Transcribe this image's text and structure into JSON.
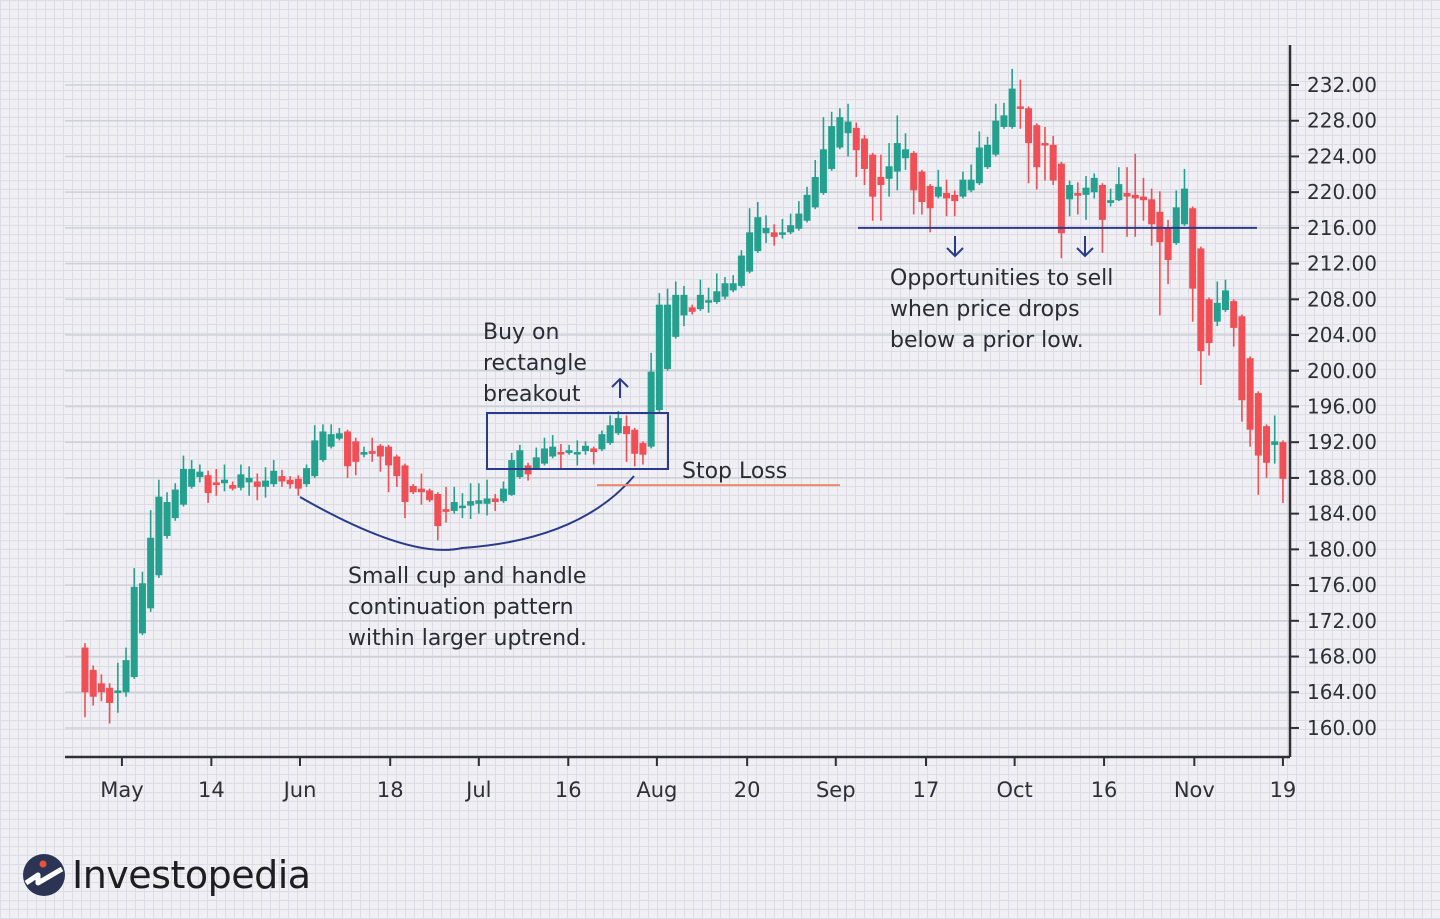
{
  "chart_data": {
    "type": "candlestick",
    "title": "",
    "xlabel": "",
    "ylabel": "",
    "ylim": [
      157,
      236
    ],
    "grid": true,
    "y_ticks": [
      "160.00",
      "164.00",
      "168.00",
      "172.00",
      "176.00",
      "180.00",
      "184.00",
      "188.00",
      "192.00",
      "196.00",
      "200.00",
      "204.00",
      "208.00",
      "212.00",
      "216.00",
      "220.00",
      "224.00",
      "228.00",
      "232.00"
    ],
    "x_ticks": [
      {
        "label": "May",
        "pos": 4.5
      },
      {
        "label": "14",
        "pos": 15.4
      },
      {
        "label": "Jun",
        "pos": 26.2
      },
      {
        "label": "18",
        "pos": 37.2
      },
      {
        "label": "Jul",
        "pos": 48
      },
      {
        "label": "16",
        "pos": 58.9
      },
      {
        "label": "Aug",
        "pos": 69.7
      },
      {
        "label": "20",
        "pos": 80.7
      },
      {
        "label": "Sep",
        "pos": 91.5
      },
      {
        "label": "17",
        "pos": 102.5
      },
      {
        "label": "Oct",
        "pos": 113.3
      },
      {
        "label": "16",
        "pos": 124.2
      },
      {
        "label": "Nov",
        "pos": 135.2
      },
      {
        "label": "19",
        "pos": 146
      }
    ],
    "colors": {
      "up": "#26a08e",
      "down": "#ef4f55",
      "axis": "#2f2f36",
      "annotation": "#2a3a8c",
      "stop_loss": "#ec8a70"
    },
    "ohlc": [
      [
        169,
        169.5,
        161.2,
        164
      ],
      [
        166.5,
        167,
        162.5,
        163.5
      ],
      [
        165,
        166,
        163,
        164
      ],
      [
        164.5,
        165,
        160.5,
        162.8
      ],
      [
        164,
        167.3,
        161.7,
        164.2
      ],
      [
        164,
        169,
        163.5,
        167.6
      ],
      [
        165.7,
        177.9,
        165.5,
        175.8
      ],
      [
        170.6,
        177.5,
        170.4,
        176.2
      ],
      [
        173.4,
        184.4,
        173,
        181.3
      ],
      [
        177.1,
        187.8,
        176.8,
        185.9
      ],
      [
        181.5,
        186.4,
        181.2,
        185.3
      ],
      [
        183.5,
        187.4,
        183.2,
        186.7
      ],
      [
        185,
        190.5,
        184.8,
        189
      ],
      [
        187,
        190,
        186.8,
        189
      ],
      [
        188.1,
        189.5,
        187.5,
        188.7
      ],
      [
        188.3,
        188.8,
        185.2,
        186.3
      ],
      [
        187.5,
        189,
        186,
        187.2
      ],
      [
        187.4,
        189.5,
        186.5,
        187.8
      ],
      [
        187.2,
        187.6,
        186.6,
        186.8
      ],
      [
        186.9,
        189.5,
        186.6,
        188.4
      ],
      [
        187.5,
        189.3,
        186,
        188
      ],
      [
        187.6,
        188.5,
        185.5,
        187
      ],
      [
        187,
        189.2,
        185.8,
        187.7
      ],
      [
        187.3,
        190,
        187,
        188.8
      ],
      [
        188.2,
        188.9,
        187,
        187.6
      ],
      [
        187.8,
        188.2,
        186.8,
        187.3
      ],
      [
        187.9,
        188.3,
        186,
        186.8
      ],
      [
        187.3,
        189.5,
        187,
        189.1
      ],
      [
        188.2,
        193.9,
        188,
        192.2
      ],
      [
        190,
        194,
        189.8,
        193.2
      ],
      [
        191.5,
        194,
        191.3,
        192.9
      ],
      [
        192.4,
        193.6,
        192.2,
        193
      ],
      [
        193.2,
        193.4,
        188,
        189.3
      ],
      [
        192.1,
        192.5,
        188.3,
        189.8
      ],
      [
        190.6,
        191.5,
        190.3,
        190.9
      ],
      [
        191,
        192.5,
        189.8,
        190.7
      ],
      [
        191.6,
        191.8,
        188.7,
        190.4
      ],
      [
        191.5,
        191.7,
        186.4,
        189.4
      ],
      [
        190.4,
        190.6,
        187,
        188.2
      ],
      [
        189.4,
        189.6,
        183.5,
        185.3
      ],
      [
        187.1,
        187.3,
        186.2,
        186.4
      ],
      [
        186.8,
        188.5,
        185,
        186.4
      ],
      [
        186.6,
        186.8,
        185.3,
        185.5
      ],
      [
        186.2,
        186.4,
        181,
        182.6
      ],
      [
        184.5,
        187,
        183,
        184.2
      ],
      [
        184.3,
        187,
        184,
        185.3
      ],
      [
        184.7,
        186.3,
        183.5,
        184.9
      ],
      [
        184.9,
        187.4,
        183.4,
        185.4
      ],
      [
        185.1,
        187.4,
        184,
        185.5
      ],
      [
        185.1,
        187.8,
        183.8,
        185.7
      ],
      [
        185.7,
        186.2,
        184.3,
        185.3
      ],
      [
        185.4,
        187.6,
        185.2,
        186.8
      ],
      [
        186.1,
        190.8,
        186,
        190
      ],
      [
        188.1,
        191.7,
        187.9,
        191.1
      ],
      [
        189.4,
        189.7,
        187.7,
        188.4
      ],
      [
        189.1,
        191.4,
        188.9,
        190.3
      ],
      [
        189.6,
        192.5,
        189.4,
        191.3
      ],
      [
        190.4,
        192.8,
        190.2,
        191.5
      ],
      [
        190.9,
        191.8,
        189.1,
        190.7
      ],
      [
        190.8,
        191.7,
        190.6,
        191.1
      ],
      [
        190.8,
        192.2,
        189.4,
        190.9
      ],
      [
        191,
        192.1,
        190.6,
        191.6
      ],
      [
        191.3,
        191.5,
        189.5,
        190.9
      ],
      [
        191.2,
        193.3,
        191,
        192.9
      ],
      [
        191.9,
        195,
        191.7,
        193.9
      ],
      [
        193,
        195.5,
        192.8,
        194.7
      ],
      [
        193.8,
        195,
        189.8,
        192.9
      ],
      [
        193.4,
        193.6,
        189.3,
        190.7
      ],
      [
        191.9,
        192.1,
        189.5,
        190.6
      ],
      [
        191.5,
        202,
        191.3,
        199.9
      ],
      [
        195.6,
        208.7,
        195.4,
        207.4
      ],
      [
        200.2,
        209.2,
        200,
        207.4
      ],
      [
        203.8,
        210,
        203.6,
        208.5
      ],
      [
        206.2,
        209.5,
        205,
        208.5
      ],
      [
        207.1,
        207.4,
        206.3,
        206.6
      ],
      [
        206.9,
        210.2,
        206.7,
        208.5
      ],
      [
        207.7,
        209.3,
        206.5,
        207.9
      ],
      [
        207.7,
        210.9,
        207.5,
        208.9
      ],
      [
        208.3,
        210.5,
        208,
        209.8
      ],
      [
        209,
        210.7,
        208.8,
        209.8
      ],
      [
        209.5,
        213.5,
        209.3,
        212.9
      ],
      [
        211.1,
        218.2,
        210.9,
        215.5
      ],
      [
        213.4,
        218.9,
        213.2,
        217.2
      ],
      [
        215.4,
        217.4,
        214.3,
        216
      ],
      [
        215.5,
        216.4,
        214,
        215
      ],
      [
        215.4,
        217,
        214.8,
        215.5
      ],
      [
        215.5,
        217.6,
        215.3,
        216.3
      ],
      [
        215.9,
        219,
        215.7,
        217.6
      ],
      [
        216.8,
        220.6,
        216.6,
        219.7
      ],
      [
        218.3,
        223.6,
        218.1,
        221.7
      ],
      [
        219.9,
        228.4,
        219.7,
        224.8
      ],
      [
        222.6,
        229,
        222.4,
        227.4
      ],
      [
        225,
        229.4,
        224.8,
        228.4
      ],
      [
        226.6,
        229.9,
        224,
        227.9
      ],
      [
        227.2,
        227.8,
        221.7,
        224.7
      ],
      [
        226,
        226.4,
        220.8,
        222.6
      ],
      [
        224.2,
        224.4,
        216.8,
        219.5
      ],
      [
        221.7,
        224.2,
        216.8,
        220.8
      ],
      [
        221.5,
        225.5,
        219.5,
        222.9
      ],
      [
        222.3,
        228.6,
        220.2,
        225.5
      ],
      [
        223.8,
        226.6,
        222.5,
        224.8
      ],
      [
        224.4,
        224.6,
        217.5,
        220.2
      ],
      [
        222.3,
        222.5,
        217.5,
        218.9
      ],
      [
        220.7,
        220.9,
        215.5,
        218.2
      ],
      [
        219.5,
        222.5,
        219.3,
        220.6
      ],
      [
        219.9,
        221.4,
        217.3,
        219.3
      ],
      [
        219.7,
        220.2,
        217.3,
        219
      ],
      [
        219.5,
        222.3,
        219.3,
        221.4
      ],
      [
        220.2,
        223.1,
        220,
        221.4
      ],
      [
        221,
        226.8,
        220.8,
        225
      ],
      [
        222.8,
        226.2,
        222.6,
        225.3
      ],
      [
        224.2,
        229.9,
        224,
        228
      ],
      [
        227.3,
        230,
        227.1,
        228.6
      ],
      [
        227.3,
        233.8,
        227.1,
        231.6
      ],
      [
        229.6,
        232.6,
        227.1,
        229.4
      ],
      [
        229.4,
        229.6,
        221,
        225.5
      ],
      [
        227.5,
        227.7,
        220.3,
        222.8
      ],
      [
        225.5,
        227.3,
        221.3,
        225.3
      ],
      [
        225.3,
        226.3,
        220.8,
        221.3
      ],
      [
        223.2,
        223.4,
        212.6,
        215.4
      ],
      [
        219.2,
        221.3,
        217.3,
        220.8
      ],
      [
        219.9,
        221.1,
        217.5,
        219.6
      ],
      [
        219.7,
        221.8,
        216.9,
        220.5
      ],
      [
        220,
        222.1,
        219.3,
        221.6
      ],
      [
        220.8,
        221,
        213.2,
        216.9
      ],
      [
        218.8,
        220.4,
        218.4,
        219.1
      ],
      [
        219.1,
        222.8,
        219,
        220.9
      ],
      [
        219.9,
        222.8,
        215,
        219.5
      ],
      [
        219.7,
        224.3,
        215,
        219.3
      ],
      [
        219.5,
        221.6,
        216.8,
        219.1
      ],
      [
        219.2,
        220.4,
        214,
        216.4
      ],
      [
        217.8,
        220.1,
        206.2,
        214.4
      ],
      [
        216,
        216.9,
        209.7,
        212.4
      ],
      [
        214.3,
        220.2,
        214.1,
        218.3
      ],
      [
        216.4,
        222.6,
        216.2,
        220.4
      ],
      [
        218.2,
        218.4,
        205.5,
        209.2
      ],
      [
        213.7,
        213.9,
        198.4,
        202.2
      ],
      [
        208,
        208.2,
        201.7,
        203.1
      ],
      [
        205.5,
        210,
        205,
        207.6
      ],
      [
        206.8,
        210.2,
        206.6,
        209
      ],
      [
        207.8,
        208,
        202.7,
        204.8
      ],
      [
        206.1,
        206.3,
        194.3,
        196.7
      ],
      [
        201.4,
        201.6,
        191.5,
        193.4
      ],
      [
        197.5,
        197.7,
        186.1,
        190.5
      ],
      [
        193.8,
        194,
        188,
        189.7
      ],
      [
        191.7,
        195,
        189.6,
        192.1
      ],
      [
        192,
        192.2,
        185.2,
        187.9
      ]
    ],
    "annotations": {
      "breakout": "Buy on\nrectangle\nbreakout",
      "stop_loss": "Stop Loss",
      "sell": "Opportunities to sell\nwhen price drops\nbelow a prior low.",
      "cup": "Small cup and handle\ncontinuation pattern\nwithin larger uptrend.",
      "stop_loss_level": 187.2,
      "sell_level": 216
    }
  },
  "brand": {
    "name": "Investopedia"
  }
}
